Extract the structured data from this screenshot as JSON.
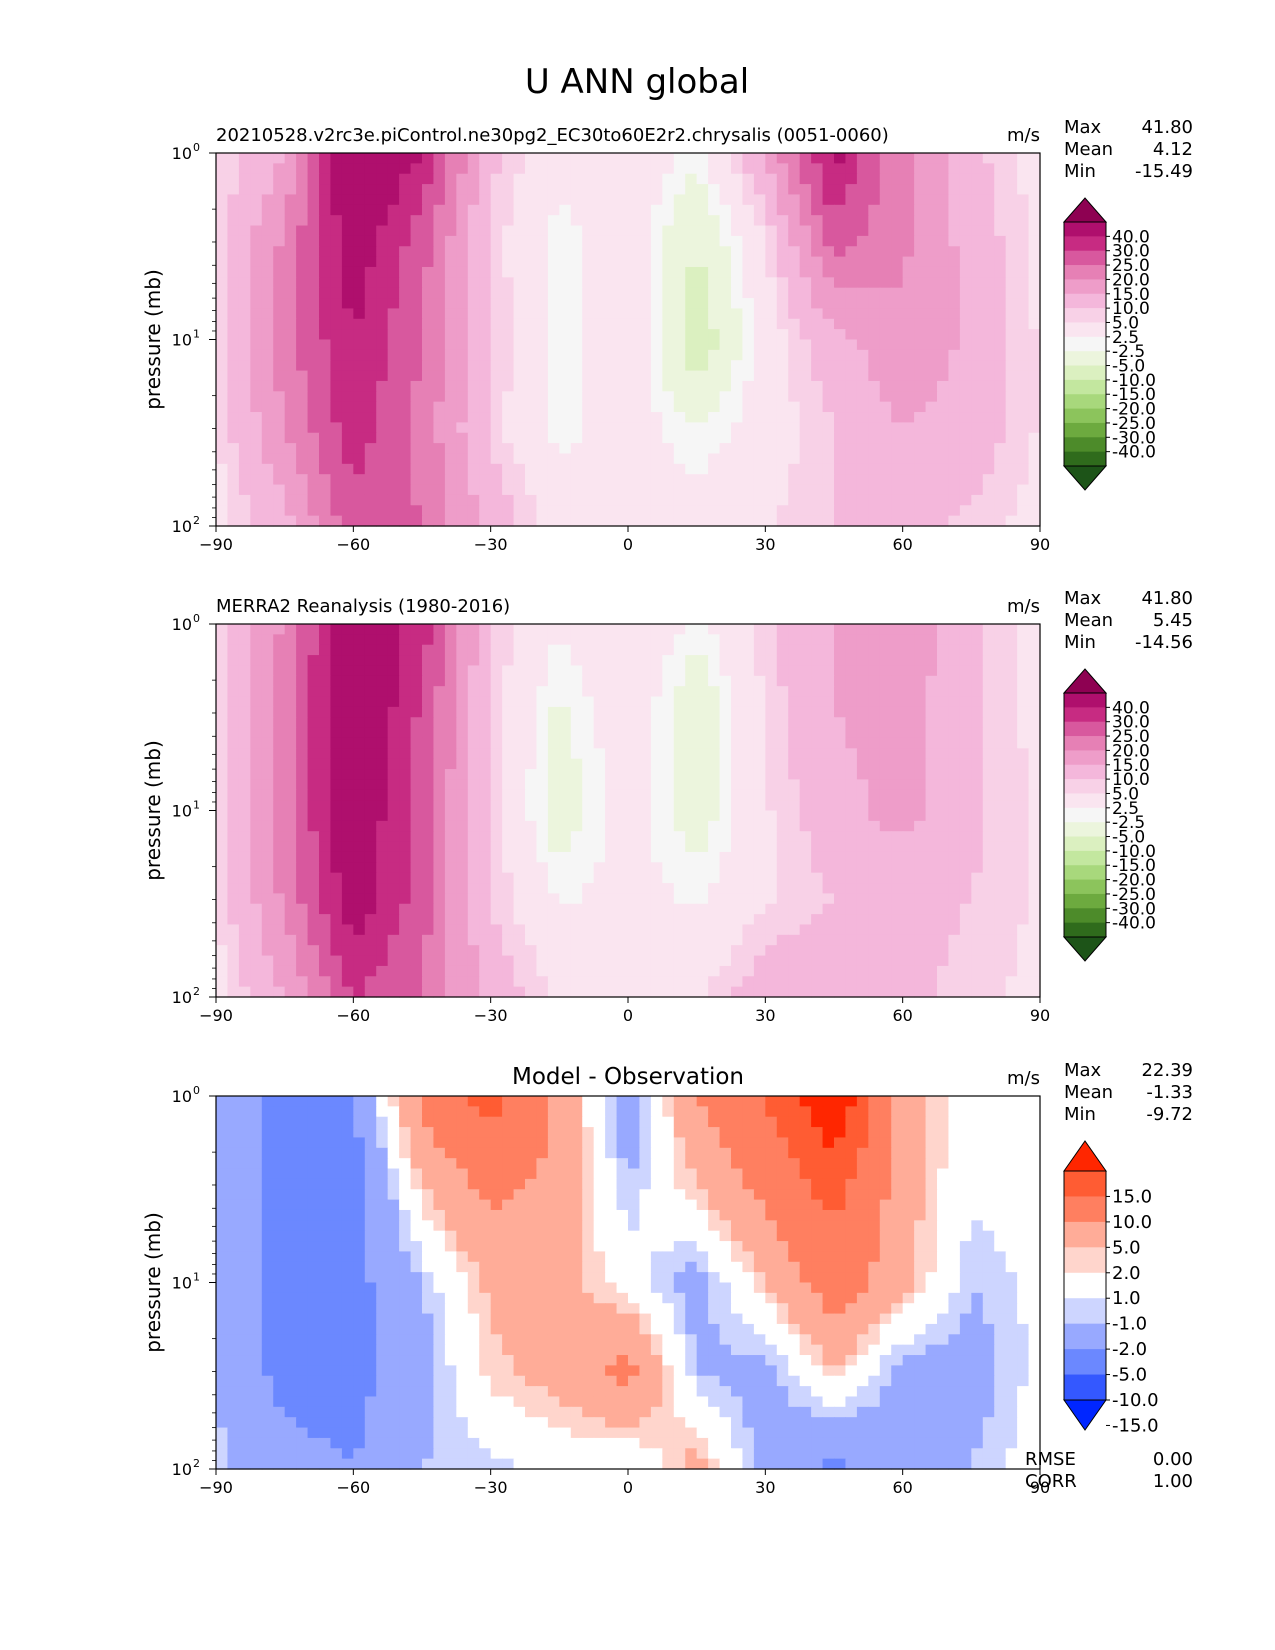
{
  "figure": {
    "title": "U ANN global"
  },
  "units_label": "m/s",
  "stat_labels": {
    "max": "Max",
    "mean": "Mean",
    "min": "Min",
    "rmse": "RMSE",
    "corr": "CORR"
  },
  "axes": {
    "ylabel": "pressure (mb)",
    "x_ticks": [
      "−90",
      "−60",
      "−30",
      "0",
      "30",
      "60",
      "90"
    ],
    "y_ticks": [
      "10",
      "10",
      "10"
    ],
    "y_tick_exponents": [
      "0",
      "1",
      "2"
    ]
  },
  "colorbars": {
    "field": {
      "tick_labels": [
        "40.0",
        "30.0",
        "25.0",
        "20.0",
        "15.0",
        "10.0",
        "5.0",
        "2.5",
        "-2.5",
        "-5.0",
        "-10.0",
        "-15.0",
        "-20.0",
        "-25.0",
        "-30.0",
        "-40.0"
      ],
      "colors": [
        "#8e0152",
        "#af0f6d",
        "#c72b82",
        "#d8589e",
        "#e680b5",
        "#ee9dc9",
        "#f4b7db",
        "#f8d1e7",
        "#fae5f0",
        "#f6f6f6",
        "#ecf5dd",
        "#dbf0c0",
        "#c3e79f",
        "#a8d87c",
        "#8cc45c",
        "#6daa3f",
        "#4d8b2a",
        "#2f6b1c",
        "#1d5418"
      ]
    },
    "diff": {
      "tick_labels": [
        "15.0",
        "10.0",
        "5.0",
        "2.0",
        "1.0",
        "-1.0",
        "-2.0",
        "-5.0",
        "-10.0",
        "-15.0"
      ],
      "colors": [
        "#ff2600",
        "#ff5c33",
        "#ff7f60",
        "#ffac98",
        "#ffd5cc",
        "#ffffff",
        "#cdd5ff",
        "#98a9ff",
        "#6b88ff",
        "#3458ff",
        "#0026ff"
      ]
    }
  },
  "panels": [
    {
      "title": "20210528.v2rc3e.piControl.ne30pg2_EC30to60E2r2.chrysalis (0051-0060)",
      "max": "41.80",
      "mean": "4.12",
      "min": "-15.49"
    },
    {
      "title": "MERRA2 Reanalysis (1980-2016)",
      "max": "41.80",
      "mean": "5.45",
      "min": "-14.56"
    },
    {
      "title": "Model - Observation",
      "max": "22.39",
      "mean": "-1.33",
      "min": "-9.72",
      "rmse": "0.00",
      "corr": "1.00"
    }
  ],
  "chart_data": [
    {
      "type": "heatmap",
      "title": "20210528.v2rc3e.piControl.ne30pg2_EC30to60E2r2.chrysalis (0051-0060)",
      "variable": "U",
      "units": "m/s",
      "ylabel": "pressure (mb)",
      "xlim": [
        -90,
        90
      ],
      "ylim_mb": [
        100,
        1
      ],
      "y_scale": "log",
      "x": [
        -90,
        -75,
        -60,
        -45,
        -30,
        -15,
        0,
        15,
        30,
        45,
        60,
        75,
        90
      ],
      "y_mb": [
        100,
        30,
        10,
        3,
        1
      ],
      "values": [
        [
          1,
          8,
          23,
          20,
          8,
          1,
          -1,
          0,
          2,
          5,
          6,
          4,
          1
        ],
        [
          2,
          15,
          28,
          18,
          4,
          -4,
          0,
          -5,
          0,
          5,
          10,
          8,
          2
        ],
        [
          3,
          18,
          30,
          20,
          6,
          -5,
          2,
          -14,
          0,
          8,
          14,
          9,
          2
        ],
        [
          3,
          16,
          34,
          22,
          4,
          -4,
          0,
          -10,
          2,
          22,
          16,
          8,
          1
        ],
        [
          2,
          10,
          38,
          30,
          6,
          -1,
          2,
          -4,
          10,
          32,
          16,
          6,
          1
        ]
      ],
      "stats": {
        "max": 41.8,
        "mean": 4.12,
        "min": -15.49
      }
    },
    {
      "type": "heatmap",
      "title": "MERRA2 Reanalysis (1980-2016)",
      "variable": "U",
      "units": "m/s",
      "ylabel": "pressure (mb)",
      "xlim": [
        -90,
        90
      ],
      "ylim_mb": [
        100,
        1
      ],
      "y_scale": "log",
      "x": [
        -90,
        -75,
        -60,
        -45,
        -30,
        -15,
        0,
        15,
        30,
        45,
        60,
        75,
        90
      ],
      "y_mb": [
        100,
        30,
        10,
        3,
        1
      ],
      "values": [
        [
          1,
          10,
          25,
          20,
          8,
          2,
          0,
          2,
          8,
          10,
          6,
          4,
          1
        ],
        [
          2,
          16,
          34,
          22,
          5,
          -3,
          -1,
          -3,
          2,
          5,
          6,
          5,
          2
        ],
        [
          3,
          18,
          36,
          22,
          4,
          -8,
          0,
          -8,
          2,
          8,
          12,
          6,
          2
        ],
        [
          3,
          18,
          38,
          24,
          4,
          -6,
          1,
          -9,
          3,
          10,
          12,
          6,
          1
        ],
        [
          2,
          16,
          36,
          28,
          5,
          -2,
          3,
          -4,
          4,
          10,
          14,
          6,
          1
        ]
      ],
      "stats": {
        "max": 41.8,
        "mean": 5.45,
        "min": -14.56
      }
    },
    {
      "type": "heatmap",
      "title": "Model - Observation",
      "variable": "U",
      "units": "m/s",
      "ylabel": "pressure (mb)",
      "xlim": [
        -90,
        90
      ],
      "ylim_mb": [
        100,
        1
      ],
      "y_scale": "log",
      "x": [
        -90,
        -75,
        -60,
        -45,
        -30,
        -15,
        0,
        15,
        30,
        45,
        60,
        75,
        90
      ],
      "y_mb": [
        100,
        30,
        10,
        3,
        1
      ],
      "values": [
        [
          -1.5,
          -4,
          -5,
          -2,
          -1.5,
          -0.5,
          -1,
          3,
          -3,
          -6,
          -3,
          -2,
          0
        ],
        [
          -2,
          -6,
          -6,
          -3,
          1.5,
          3,
          6,
          -2,
          -3,
          2,
          -3,
          -3,
          -0.5
        ],
        [
          -2,
          -6,
          -6,
          -2,
          2.5,
          3,
          0,
          -3,
          2,
          7,
          3,
          -2,
          -0.5
        ],
        [
          -2,
          -6,
          -7,
          2,
          6,
          4,
          -2,
          2,
          6,
          12,
          3,
          -0.5,
          0
        ],
        [
          -2,
          -6,
          -5,
          6,
          12,
          4,
          -4,
          5,
          10,
          20,
          3,
          0,
          0
        ]
      ],
      "stats": {
        "max": 22.39,
        "mean": -1.33,
        "min": -9.72,
        "rmse": 0.0,
        "corr": 1.0
      }
    }
  ]
}
